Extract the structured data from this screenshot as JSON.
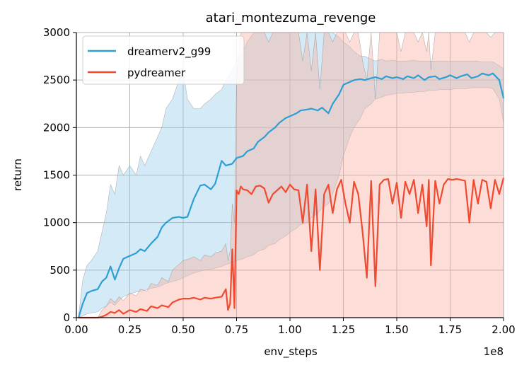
{
  "chart_data": {
    "type": "line",
    "title": "atari_montezuma_revenge",
    "xlabel": "env_steps",
    "ylabel": "return",
    "x_scale_label": "1e8",
    "xlim": [
      0,
      200000000
    ],
    "ylim": [
      0,
      3000
    ],
    "xticks": [
      0,
      25000000,
      50000000,
      75000000,
      100000000,
      125000000,
      150000000,
      175000000,
      200000000
    ],
    "xtick_labels": [
      "0.00",
      "0.25",
      "0.50",
      "0.75",
      "1.00",
      "1.25",
      "1.50",
      "1.75",
      "2.00"
    ],
    "yticks": [
      0,
      500,
      1000,
      1500,
      2000,
      2500,
      3000
    ],
    "ytick_labels": [
      "0",
      "500",
      "1000",
      "1500",
      "2000",
      "2500",
      "3000"
    ],
    "grid": true,
    "legend_position": "top-left",
    "series": [
      {
        "name": "dreamerv2_g99",
        "color": "#2c9fd4",
        "fill_color": "#9fd0ea",
        "x": [
          1000000,
          3000000,
          5000000,
          7000000,
          10000000,
          12000000,
          14000000,
          16000000,
          18000000,
          20000000,
          22000000,
          25000000,
          28000000,
          30000000,
          32000000,
          35000000,
          38000000,
          40000000,
          42000000,
          45000000,
          48000000,
          50000000,
          52000000,
          55000000,
          58000000,
          60000000,
          63000000,
          65000000,
          68000000,
          70000000,
          73000000,
          75000000,
          78000000,
          80000000,
          83000000,
          85000000,
          88000000,
          90000000,
          93000000,
          95000000,
          98000000,
          100000000,
          103000000,
          105000000,
          108000000,
          110000000,
          113000000,
          115000000,
          118000000,
          120000000,
          123000000,
          125000000,
          128000000,
          130000000,
          133000000,
          135000000,
          138000000,
          140000000,
          143000000,
          145000000,
          148000000,
          150000000,
          153000000,
          155000000,
          158000000,
          160000000,
          163000000,
          165000000,
          168000000,
          170000000,
          173000000,
          175000000,
          178000000,
          180000000,
          183000000,
          185000000,
          188000000,
          190000000,
          193000000,
          195000000,
          198000000,
          200000000
        ],
        "y": [
          0,
          150,
          260,
          280,
          300,
          380,
          420,
          540,
          400,
          520,
          620,
          650,
          680,
          720,
          700,
          780,
          850,
          950,
          1000,
          1050,
          1060,
          1050,
          1060,
          1250,
          1390,
          1400,
          1350,
          1410,
          1650,
          1600,
          1620,
          1680,
          1700,
          1750,
          1780,
          1850,
          1900,
          1950,
          2000,
          2050,
          2100,
          2120,
          2150,
          2180,
          2190,
          2200,
          2180,
          2210,
          2150,
          2250,
          2350,
          2450,
          2480,
          2500,
          2510,
          2500,
          2520,
          2530,
          2510,
          2540,
          2520,
          2530,
          2510,
          2540,
          2520,
          2550,
          2500,
          2530,
          2540,
          2510,
          2530,
          2550,
          2520,
          2540,
          2560,
          2520,
          2540,
          2570,
          2550,
          2570,
          2500,
          2310
        ],
        "lower": [
          0,
          20,
          40,
          50,
          60,
          100,
          120,
          160,
          130,
          180,
          220,
          250,
          270,
          280,
          290,
          310,
          320,
          340,
          360,
          380,
          400,
          420,
          440,
          470,
          490,
          500,
          510,
          520,
          540,
          560,
          580,
          600,
          620,
          640,
          660,
          700,
          720,
          760,
          780,
          820,
          860,
          900,
          940,
          980,
          1000,
          1050,
          1100,
          1150,
          1200,
          1300,
          1500,
          1700,
          1900,
          2000,
          2100,
          2200,
          2250,
          2300,
          2320,
          2340,
          2350,
          2360,
          2360,
          2370,
          2370,
          2380,
          2380,
          2390,
          2390,
          2400,
          2400,
          2400,
          2410,
          2410,
          2410,
          2420,
          2420,
          2420,
          2420,
          2410,
          2300,
          2050
        ],
        "upper": [
          10,
          400,
          550,
          600,
          700,
          900,
          1100,
          1400,
          1300,
          1600,
          1500,
          1600,
          1500,
          1700,
          1600,
          1750,
          1900,
          2000,
          2200,
          2300,
          2500,
          2600,
          2300,
          2200,
          2200,
          2250,
          2300,
          2350,
          2400,
          2500,
          2600,
          2700,
          2800,
          2900,
          3000,
          3000,
          3000,
          3000,
          3000,
          3000,
          3000,
          3000,
          3000,
          3000,
          3000,
          3000,
          3000,
          3000,
          3000,
          3000,
          2950,
          2900,
          2850,
          2800,
          2750,
          2750,
          2720,
          2700,
          2720,
          2700,
          2710,
          2700,
          2700,
          2700,
          2710,
          2700,
          2700,
          2700,
          2700,
          2700,
          2700,
          2700,
          2700,
          2700,
          2700,
          2700,
          2700,
          2690,
          2690,
          2690,
          2650,
          2620
        ]
      },
      {
        "name": "pydreamer",
        "color": "#f04a30",
        "fill_color": "#f9b3a7",
        "x": [
          1000000,
          5000000,
          10000000,
          12000000,
          14000000,
          16000000,
          18000000,
          20000000,
          22000000,
          25000000,
          28000000,
          30000000,
          33000000,
          35000000,
          38000000,
          40000000,
          43000000,
          45000000,
          48000000,
          50000000,
          53000000,
          55000000,
          58000000,
          60000000,
          63000000,
          65000000,
          68000000,
          70000000,
          71000000,
          72000000,
          73000000,
          74000000,
          75000000,
          76000000,
          77000000,
          78000000,
          80000000,
          82000000,
          84000000,
          86000000,
          88000000,
          90000000,
          92000000,
          94000000,
          96000000,
          98000000,
          100000000,
          102000000,
          104000000,
          106000000,
          108000000,
          110000000,
          112000000,
          114000000,
          116000000,
          118000000,
          120000000,
          122000000,
          124000000,
          126000000,
          128000000,
          130000000,
          132000000,
          134000000,
          136000000,
          138000000,
          140000000,
          142000000,
          144000000,
          146000000,
          148000000,
          150000000,
          152000000,
          154000000,
          156000000,
          158000000,
          160000000,
          162000000,
          164000000,
          165000000,
          166000000,
          168000000,
          170000000,
          172000000,
          174000000,
          176000000,
          178000000,
          180000000,
          182000000,
          184000000,
          186000000,
          188000000,
          190000000,
          192000000,
          194000000,
          196000000,
          198000000,
          200000000
        ],
        "y": [
          0,
          0,
          0,
          10,
          30,
          60,
          50,
          80,
          40,
          80,
          60,
          90,
          70,
          120,
          100,
          130,
          110,
          160,
          190,
          200,
          200,
          210,
          190,
          210,
          200,
          210,
          220,
          300,
          80,
          150,
          720,
          100,
          1340,
          1300,
          1380,
          1350,
          1340,
          1300,
          1380,
          1390,
          1360,
          1210,
          1300,
          1340,
          1380,
          1320,
          1400,
          1350,
          1340,
          1000,
          1400,
          700,
          1350,
          500,
          1300,
          1400,
          1100,
          1350,
          1450,
          1200,
          1000,
          1430,
          1300,
          900,
          420,
          1440,
          330,
          1400,
          1450,
          1460,
          1200,
          1420,
          1050,
          1430,
          1300,
          1450,
          1100,
          1400,
          960,
          1450,
          550,
          1440,
          1200,
          1400,
          1460,
          1450,
          1460,
          1450,
          1440,
          1000,
          1450,
          1200,
          1450,
          1430,
          1150,
          1450,
          1300,
          1470
        ],
        "lower": [
          0,
          0,
          0,
          0,
          0,
          0,
          0,
          0,
          0,
          0,
          0,
          0,
          0,
          0,
          0,
          0,
          0,
          0,
          0,
          0,
          0,
          0,
          0,
          0,
          0,
          0,
          0,
          0,
          0,
          0,
          0,
          0,
          0,
          0,
          0,
          0,
          0,
          0,
          0,
          0,
          0,
          0,
          0,
          0,
          0,
          0,
          0,
          0,
          0,
          0,
          0,
          0,
          0,
          0,
          0,
          0,
          0,
          0,
          0,
          0,
          0,
          0,
          0,
          0,
          0,
          0,
          0,
          0,
          0,
          0,
          0,
          0,
          0,
          0,
          0,
          0,
          0,
          0,
          0,
          0,
          0,
          0,
          0,
          0,
          0,
          0,
          0,
          0,
          0,
          0,
          0,
          0,
          0,
          0,
          0,
          0,
          0,
          0
        ],
        "upper": [
          0,
          0,
          0,
          80,
          120,
          200,
          160,
          220,
          180,
          260,
          230,
          300,
          280,
          360,
          340,
          420,
          380,
          500,
          560,
          600,
          620,
          640,
          600,
          660,
          640,
          680,
          700,
          780,
          600,
          700,
          1200,
          1000,
          2500,
          2800,
          3000,
          3000,
          3000,
          3000,
          3000,
          3000,
          3000,
          2900,
          3000,
          3000,
          3000,
          3000,
          3000,
          3000,
          3000,
          2700,
          3000,
          2600,
          3000,
          2400,
          3000,
          3000,
          2900,
          3000,
          3000,
          3000,
          2900,
          3000,
          3000,
          2700,
          2500,
          3000,
          2300,
          3000,
          3000,
          3000,
          3000,
          3000,
          2800,
          3000,
          3000,
          3000,
          2900,
          3000,
          2800,
          3000,
          2600,
          3000,
          3000,
          3000,
          3000,
          3000,
          3000,
          3000,
          3000,
          2900,
          3000,
          3000,
          3000,
          3000,
          2950,
          3000,
          3000,
          3000
        ]
      }
    ]
  }
}
